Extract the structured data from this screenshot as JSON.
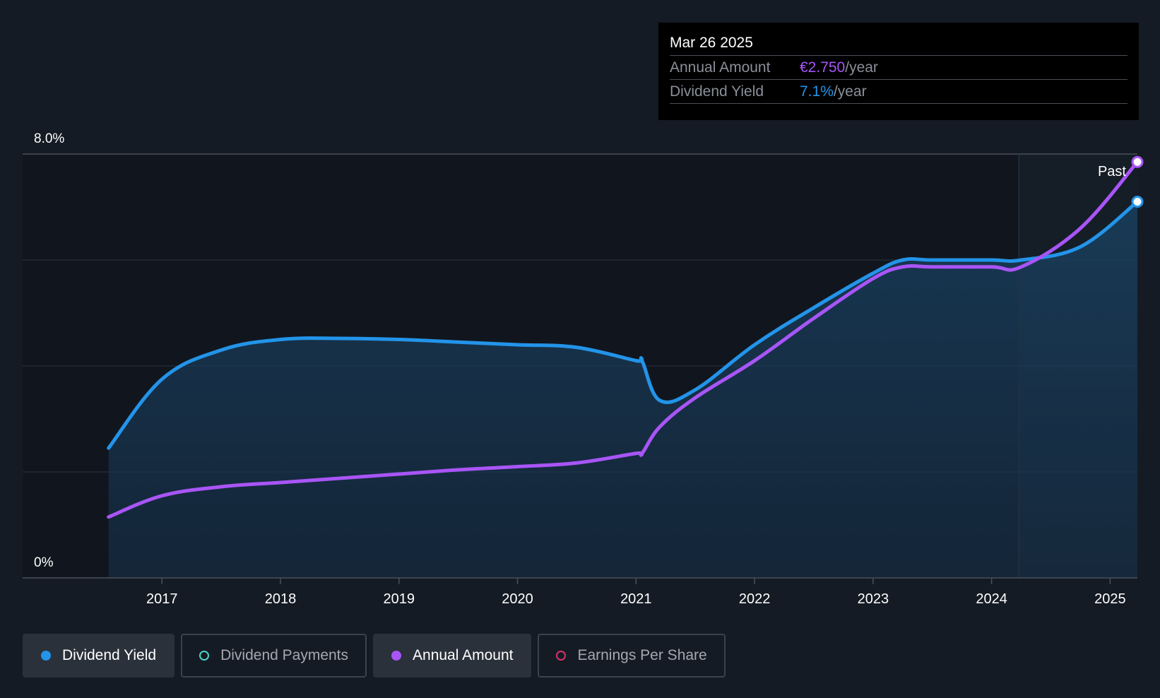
{
  "tooltip": {
    "date": "Mar 26 2025",
    "rows": [
      {
        "label": "Annual Amount",
        "value": "€2.750",
        "unit": "/year",
        "color": "#a855f7"
      },
      {
        "label": "Dividend Yield",
        "value": "7.1%",
        "unit": "/year",
        "color": "#2394e9"
      }
    ]
  },
  "legend": [
    {
      "label": "Dividend Yield",
      "color": "#2394e9",
      "active": true
    },
    {
      "label": "Dividend Payments",
      "color": "#4fd1c5",
      "active": false
    },
    {
      "label": "Annual Amount",
      "color": "#a855f7",
      "active": true
    },
    {
      "label": "Earnings Per Share",
      "color": "#d6336c",
      "active": false
    }
  ],
  "chart_data": {
    "type": "line",
    "y_max_label": "8.0%",
    "y_min_label": "0%",
    "ylim": [
      0,
      8
    ],
    "xlim": [
      2016.2,
      2025.23
    ],
    "xticks": [
      "2017",
      "2018",
      "2019",
      "2020",
      "2021",
      "2022",
      "2023",
      "2024",
      "2025"
    ],
    "past_label": "Past",
    "past_start": 2024.23,
    "grid": true,
    "series": [
      {
        "name": "Dividend Yield",
        "color": "#2394e9",
        "points": [
          [
            2016.55,
            2.45
          ],
          [
            2017.0,
            3.75
          ],
          [
            2017.5,
            4.3
          ],
          [
            2018.0,
            4.5
          ],
          [
            2018.5,
            4.52
          ],
          [
            2019.0,
            4.5
          ],
          [
            2019.5,
            4.45
          ],
          [
            2020.0,
            4.4
          ],
          [
            2020.5,
            4.35
          ],
          [
            2021.0,
            4.1
          ],
          [
            2021.05,
            4.1
          ],
          [
            2021.2,
            3.35
          ],
          [
            2021.5,
            3.55
          ],
          [
            2022.0,
            4.4
          ],
          [
            2022.5,
            5.1
          ],
          [
            2023.0,
            5.75
          ],
          [
            2023.25,
            6.0
          ],
          [
            2023.5,
            6.0
          ],
          [
            2024.0,
            6.0
          ],
          [
            2024.25,
            6.0
          ],
          [
            2024.75,
            6.25
          ],
          [
            2025.23,
            7.1
          ]
        ]
      },
      {
        "name": "Annual Amount",
        "color": "#a855f7",
        "points": [
          [
            2016.55,
            1.15
          ],
          [
            2017.0,
            1.55
          ],
          [
            2017.5,
            1.72
          ],
          [
            2018.0,
            1.8
          ],
          [
            2018.5,
            1.88
          ],
          [
            2019.0,
            1.96
          ],
          [
            2019.5,
            2.04
          ],
          [
            2020.0,
            2.1
          ],
          [
            2020.5,
            2.17
          ],
          [
            2021.0,
            2.35
          ],
          [
            2021.05,
            2.35
          ],
          [
            2021.2,
            2.85
          ],
          [
            2021.5,
            3.4
          ],
          [
            2022.0,
            4.1
          ],
          [
            2022.5,
            4.9
          ],
          [
            2023.0,
            5.65
          ],
          [
            2023.25,
            5.87
          ],
          [
            2023.5,
            5.87
          ],
          [
            2024.0,
            5.87
          ],
          [
            2024.25,
            5.87
          ],
          [
            2024.75,
            6.6
          ],
          [
            2025.23,
            7.85
          ]
        ]
      }
    ]
  }
}
